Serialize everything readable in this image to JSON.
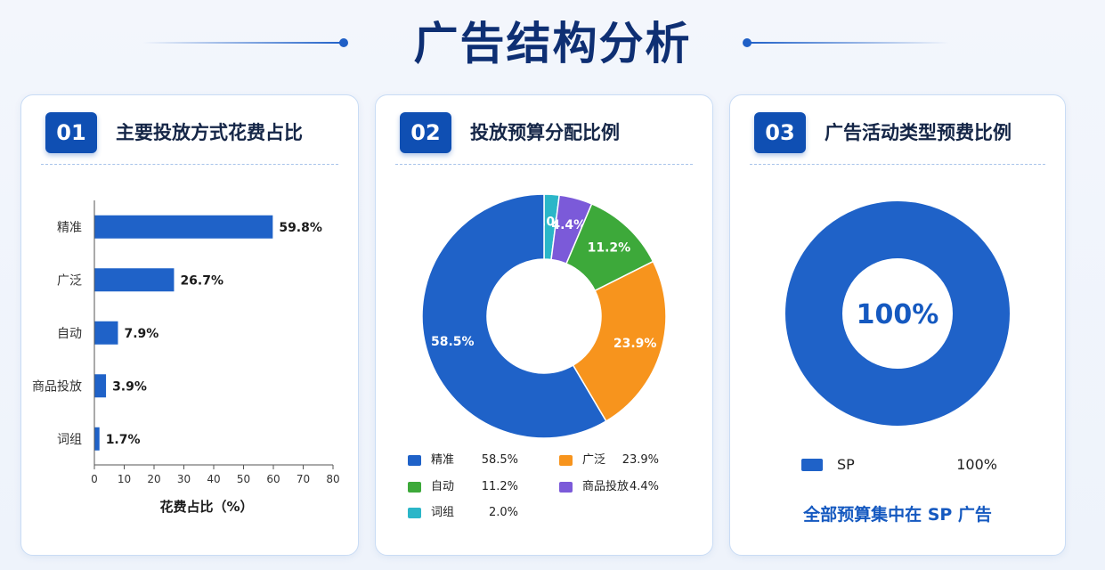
{
  "page": {
    "title": "广告结构分析"
  },
  "cards": [
    {
      "number": "01",
      "title": "主要投放方式花费占比"
    },
    {
      "number": "02",
      "title": "投放预算分配比例"
    },
    {
      "number": "03",
      "title": "广告活动类型预费比例"
    }
  ],
  "colors": {
    "primary": "#1f62c8",
    "orange": "#f7941d",
    "green": "#3da93a",
    "purple": "#7b5ad9",
    "teal": "#2bb6c8",
    "title_navy": "#0e2f73"
  },
  "chart_data": [
    {
      "type": "bar",
      "orientation": "horizontal",
      "categories": [
        "精准",
        "广泛",
        "自动",
        "商品投放",
        "词组"
      ],
      "values": [
        59.8,
        26.7,
        7.9,
        3.9,
        1.7
      ],
      "value_labels": [
        "59.8%",
        "26.7%",
        "7.9%",
        "3.9%",
        "1.7%"
      ],
      "xlabel": "花费占比（%）",
      "xlim": [
        0,
        80
      ],
      "xticks": [
        0,
        10,
        20,
        30,
        40,
        50,
        60,
        70,
        80
      ],
      "color": "#1f62c8",
      "grid": false
    },
    {
      "type": "pie",
      "donut": true,
      "slices": [
        {
          "name": "精准",
          "value": 58.5,
          "label": "58.5%",
          "color": "#1f62c8"
        },
        {
          "name": "广泛",
          "value": 23.9,
          "label": "23.9%",
          "color": "#f7941d"
        },
        {
          "name": "自动",
          "value": 11.2,
          "label": "11.2%",
          "color": "#3da93a"
        },
        {
          "name": "商品投放",
          "value": 4.4,
          "label": "4.4%",
          "color": "#7b5ad9"
        },
        {
          "name": "词组",
          "value": 2.0,
          "label": "2.0%",
          "color": "#2bb6c8"
        }
      ],
      "legend_placement": "bottom"
    },
    {
      "type": "pie",
      "donut": true,
      "slices": [
        {
          "name": "SP",
          "value": 100,
          "label": "100%",
          "color": "#1f62c8"
        }
      ],
      "center_label": "100%",
      "legend_placement": "bottom",
      "footnote": "全部预算集中在 SP 广告"
    }
  ]
}
